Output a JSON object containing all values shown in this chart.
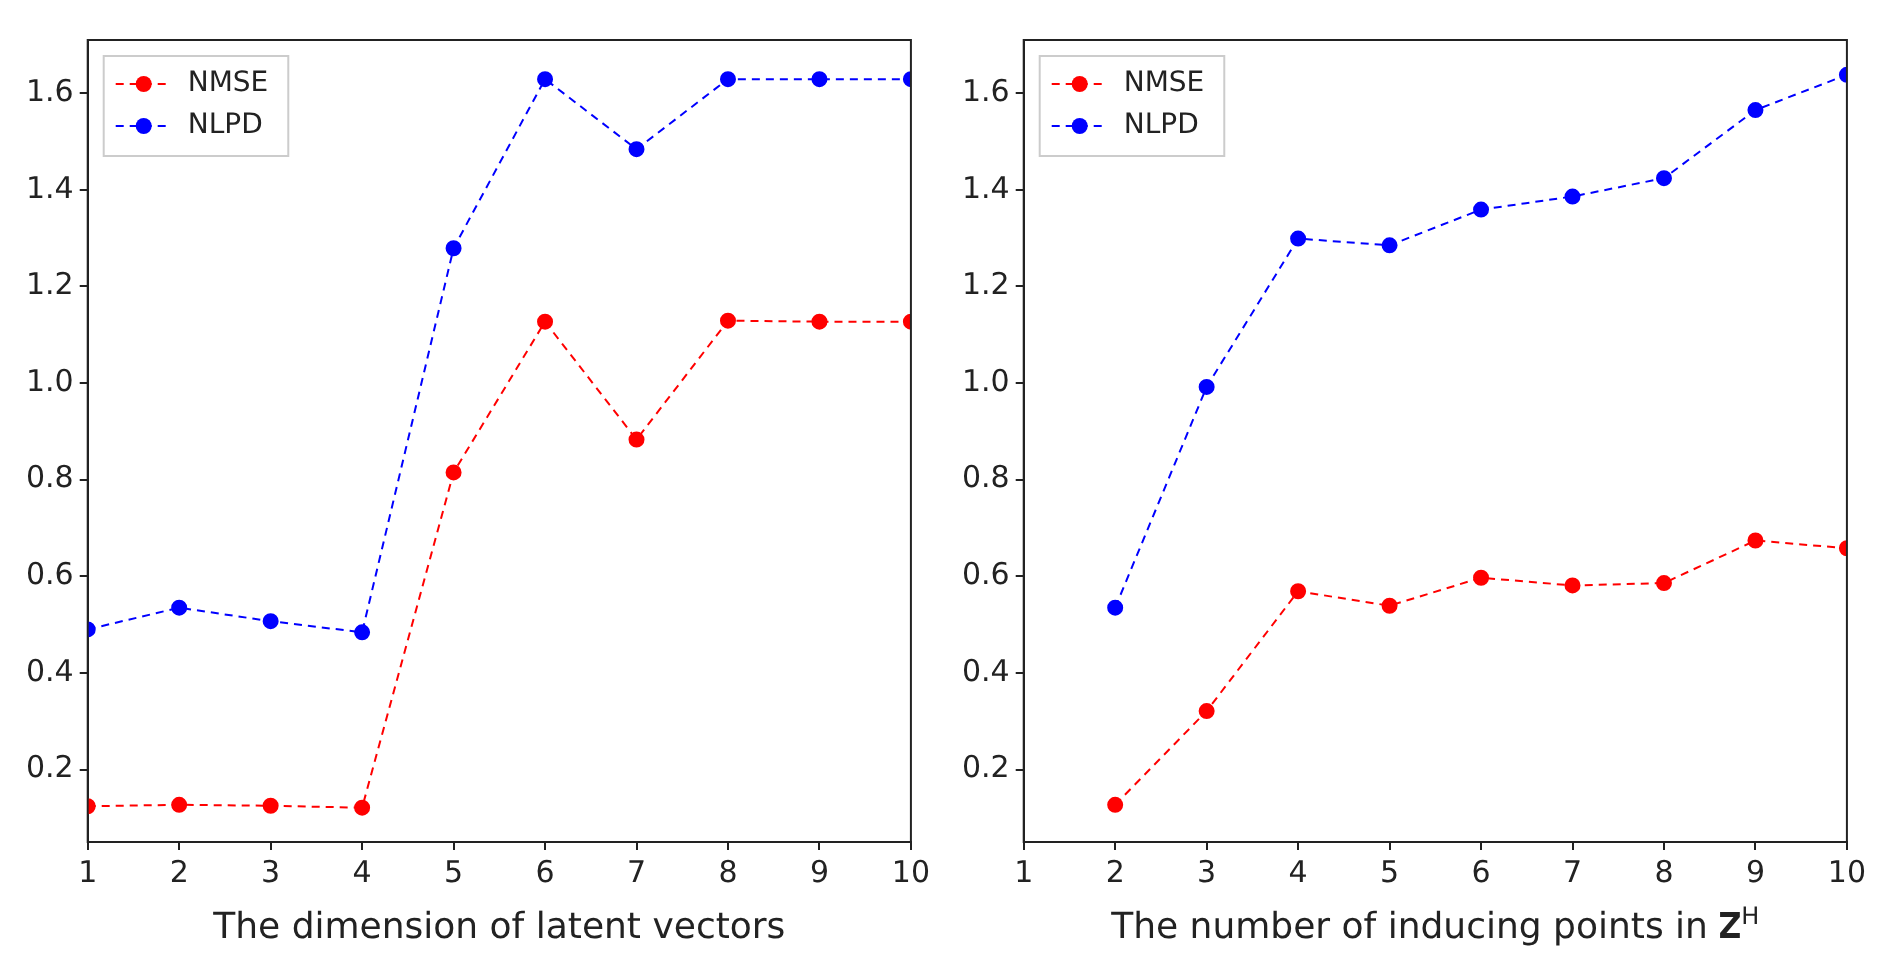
{
  "chart_data": [
    {
      "type": "line",
      "xlabel": "The dimension of latent vectors",
      "x": [
        1,
        2,
        3,
        4,
        5,
        6,
        7,
        8,
        9,
        10
      ],
      "xlim": [
        1,
        10
      ],
      "xticks": [
        1,
        2,
        3,
        4,
        5,
        6,
        7,
        8,
        9,
        10
      ],
      "ylim": [
        0.05,
        1.71
      ],
      "yticks": [
        0.2,
        0.4,
        0.6,
        0.8,
        {
          "value": 1,
          "label": "1.0"
        },
        1.2,
        1.4,
        1.6
      ],
      "grid": false,
      "legend": "top left",
      "marker": "circle",
      "line_style": "dashed",
      "series": [
        {
          "name": "NMSE",
          "color": "#ff0000",
          "values": [
            0.124,
            0.127,
            0.125,
            0.121,
            0.815,
            1.127,
            0.883,
            1.129,
            1.127,
            1.127
          ]
        },
        {
          "name": "NLPD",
          "color": "#0000ff",
          "values": [
            0.49,
            0.535,
            0.507,
            0.484,
            1.279,
            1.629,
            1.484,
            1.629,
            1.629,
            1.629
          ]
        }
      ]
    },
    {
      "type": "line",
      "xlabel": "The number of inducing points in 𝐙$^{H}$",
      "x": [
        2,
        3,
        4,
        5,
        6,
        7,
        8,
        9,
        10
      ],
      "xlim": [
        1,
        10
      ],
      "xticks": [
        1,
        2,
        3,
        4,
        5,
        6,
        7,
        8,
        9,
        10
      ],
      "ylim": [
        0.05,
        1.71
      ],
      "yticks": [
        0.2,
        0.4,
        0.6,
        0.8,
        {
          "value": 1,
          "label": "1.0"
        },
        1.2,
        1.4,
        1.6
      ],
      "grid": false,
      "legend": "top left",
      "marker": "circle",
      "line_style": "dashed",
      "series": [
        {
          "name": "NMSE",
          "color": "#ff0000",
          "values": [
            0.127,
            0.321,
            0.569,
            0.539,
            0.597,
            0.581,
            0.586,
            0.674,
            0.658
          ]
        },
        {
          "name": "NLPD",
          "color": "#0000ff",
          "values": [
            0.535,
            0.992,
            1.299,
            1.285,
            1.359,
            1.386,
            1.424,
            1.565,
            1.638
          ]
        }
      ]
    }
  ]
}
